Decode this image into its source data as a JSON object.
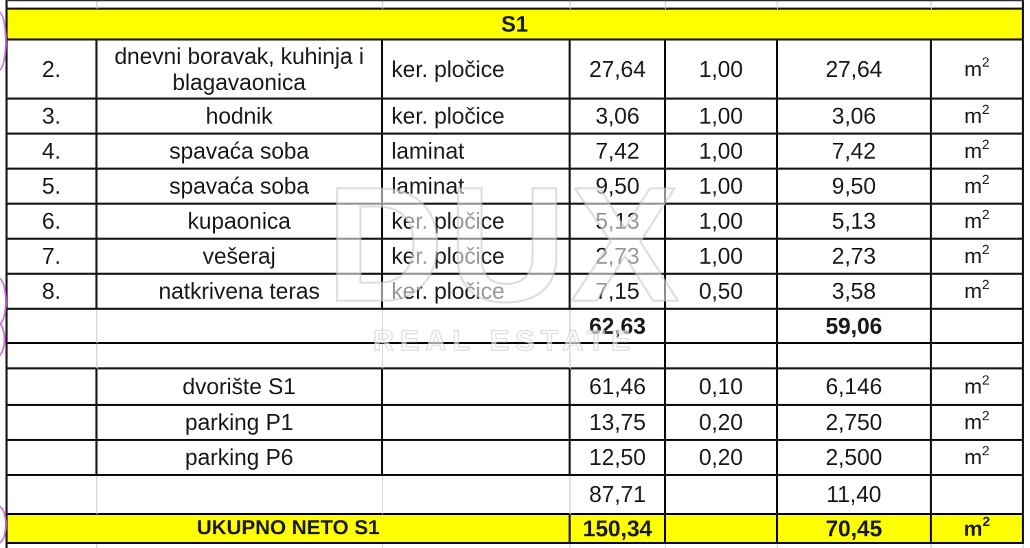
{
  "table": {
    "section_header": "S1",
    "rows": [
      {
        "num": "2.",
        "name": "dnevni boravak, kuhinja i blagavaonica",
        "material": "ker. pločice",
        "area": "27,64",
        "coef": "1,00",
        "result": "27,64",
        "unit": "m²"
      },
      {
        "num": "3.",
        "name": "hodnik",
        "material": "ker. pločice",
        "area": "3,06",
        "coef": "1,00",
        "result": "3,06",
        "unit": "m²"
      },
      {
        "num": "4.",
        "name": "spavaća soba",
        "material": "laminat",
        "area": "7,42",
        "coef": "1,00",
        "result": "7,42",
        "unit": "m²"
      },
      {
        "num": "5.",
        "name": "spavaća soba",
        "material": "laminat",
        "area": "9,50",
        "coef": "1,00",
        "result": "9,50",
        "unit": "m²"
      },
      {
        "num": "6.",
        "name": "kupaonica",
        "material": "ker. pločice",
        "area": "5,13",
        "coef": "1,00",
        "result": "5,13",
        "unit": "m²"
      },
      {
        "num": "7.",
        "name": "vešeraj",
        "material": "ker. pločice",
        "area": "2,73",
        "coef": "1,00",
        "result": "2,73",
        "unit": "m²"
      },
      {
        "num": "8.",
        "name": "natkrivena teras",
        "material": "ker. pločice",
        "area": "7,15",
        "coef": "0,50",
        "result": "3,58",
        "unit": "m²"
      }
    ],
    "subtotal_row": {
      "area": "62,63",
      "result": "59,06"
    },
    "extra_rows": [
      {
        "name": "dvorište S1",
        "area": "61,46",
        "coef": "0,10",
        "result": "6,146",
        "unit": "m²"
      },
      {
        "name": "parking P1",
        "area": "13,75",
        "coef": "0,20",
        "result": "2,750",
        "unit": "m²"
      },
      {
        "name": "parking P6",
        "area": "12,50",
        "coef": "0,20",
        "result": "2,500",
        "unit": "m²"
      }
    ],
    "pre_total_row": {
      "area": "87,71",
      "result": "11,40"
    },
    "total_row": {
      "label": "UKUPNO NETO S1",
      "area": "150,34",
      "result": "70,45",
      "unit": "m²"
    }
  },
  "watermark": {
    "line1": "DUX",
    "line2": "REAL ESTATE"
  },
  "colors": {
    "highlight_yellow": "#ffff00",
    "grid_line": "#161616",
    "light_grid_line": "#d9d9d9",
    "pen_mark": "#c76ad6",
    "text": "#1c1c1c"
  }
}
